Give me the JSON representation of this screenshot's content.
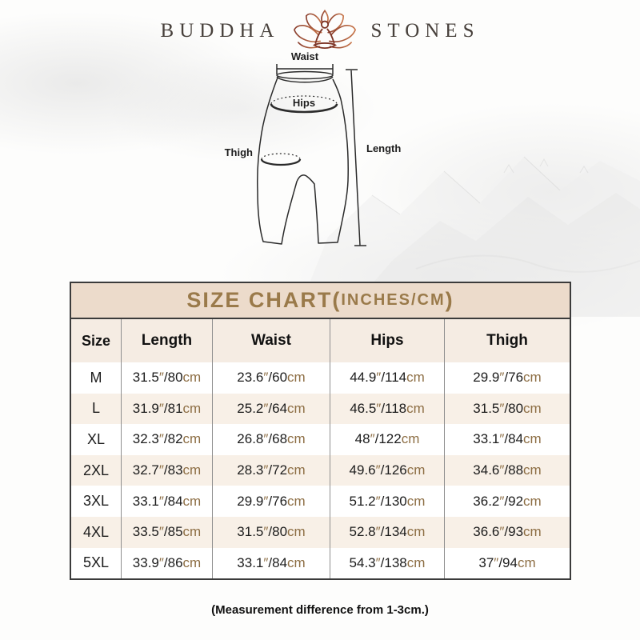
{
  "brand": {
    "word_left": "BUDDHA",
    "word_right": "STONES"
  },
  "diagram": {
    "labels": {
      "waist": "Waist",
      "hips": "Hips",
      "thigh": "Thigh",
      "length": "Length"
    }
  },
  "size_chart": {
    "title_main": "SIZE CHART(",
    "title_sub": "INCHES/CM",
    "title_close": ")",
    "columns": [
      "Size",
      "Length",
      "Waist",
      "Hips",
      "Thigh"
    ],
    "inch_mark": "″",
    "separator": "/",
    "cm_label": "cm",
    "rows": [
      {
        "size": "M",
        "length": {
          "in": "31.5",
          "cm": "80"
        },
        "waist": {
          "in": "23.6",
          "cm": "60"
        },
        "hips": {
          "in": "44.9",
          "cm": "114"
        },
        "thigh": {
          "in": "29.9",
          "cm": "76"
        }
      },
      {
        "size": "L",
        "length": {
          "in": "31.9",
          "cm": "81"
        },
        "waist": {
          "in": "25.2",
          "cm": "64"
        },
        "hips": {
          "in": "46.5",
          "cm": "118"
        },
        "thigh": {
          "in": "31.5",
          "cm": "80"
        }
      },
      {
        "size": "XL",
        "length": {
          "in": "32.3",
          "cm": "82"
        },
        "waist": {
          "in": "26.8",
          "cm": "68"
        },
        "hips": {
          "in": "48",
          "cm": "122"
        },
        "thigh": {
          "in": "33.1",
          "cm": "84"
        }
      },
      {
        "size": "2XL",
        "length": {
          "in": "32.7",
          "cm": "83"
        },
        "waist": {
          "in": "28.3",
          "cm": "72"
        },
        "hips": {
          "in": "49.6",
          "cm": "126"
        },
        "thigh": {
          "in": "34.6",
          "cm": "88"
        }
      },
      {
        "size": "3XL",
        "length": {
          "in": "33.1",
          "cm": "84"
        },
        "waist": {
          "in": "29.9",
          "cm": "76"
        },
        "hips": {
          "in": "51.2",
          "cm": "130"
        },
        "thigh": {
          "in": "36.2",
          "cm": "92"
        }
      },
      {
        "size": "4XL",
        "length": {
          "in": "33.5",
          "cm": "85"
        },
        "waist": {
          "in": "31.5",
          "cm": "80"
        },
        "hips": {
          "in": "52.8",
          "cm": "134"
        },
        "thigh": {
          "in": "36.6",
          "cm": "93"
        }
      },
      {
        "size": "5XL",
        "length": {
          "in": "33.9",
          "cm": "86"
        },
        "waist": {
          "in": "33.1",
          "cm": "84"
        },
        "hips": {
          "in": "54.3",
          "cm": "138"
        },
        "thigh": {
          "in": "37",
          "cm": "94"
        }
      }
    ]
  },
  "note": "(Measurement difference from 1-3cm.)",
  "colors": {
    "title_accent": "#9a7a4a",
    "unit_brown": "#8d6e44",
    "title_band_bg": "#ecdbcb",
    "header_row_bg": "#f5ece3",
    "alt_row_bg": "#f8f0e7",
    "lotus_dark": "#8a3f2e",
    "lotus_light": "#c8764a"
  }
}
